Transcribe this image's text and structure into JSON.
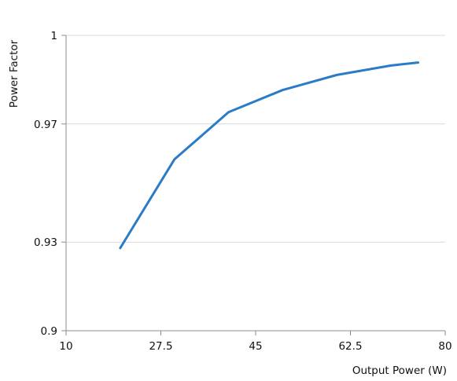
{
  "chart_data": {
    "type": "line",
    "title": "",
    "xlabel": "Output Power (W)",
    "ylabel": "Power Factor",
    "xlim": [
      10,
      80
    ],
    "ylim": [
      0.9,
      1.0
    ],
    "x_ticks": [
      10,
      27.5,
      45,
      62.5,
      80
    ],
    "x_tick_labels": [
      "10",
      "27.5",
      "45",
      "62.5",
      "80"
    ],
    "y_ticks": [
      0.9,
      0.93,
      0.97,
      1.0
    ],
    "y_tick_labels": [
      "0.9",
      "0.93",
      "0.97",
      "1"
    ],
    "grid": true,
    "legend": "none",
    "series": [
      {
        "color": "#2a7cc6",
        "x": [
          20,
          30,
          40,
          50,
          60,
          70,
          75
        ],
        "values": [
          0.928,
          0.958,
          0.974,
          0.9815,
          0.9866,
          0.9898,
          0.9908
        ]
      }
    ]
  }
}
